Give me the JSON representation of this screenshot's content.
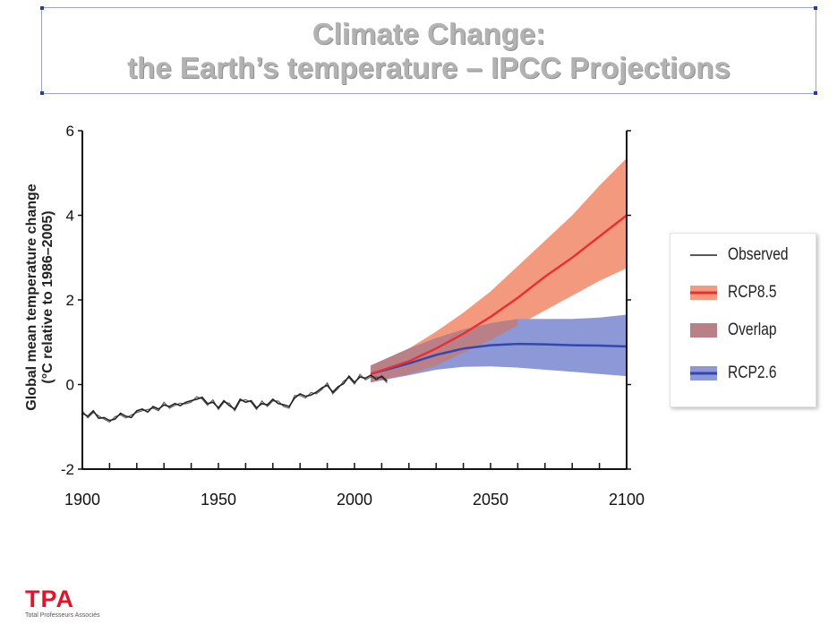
{
  "slide": {
    "title_line1": "Climate Change:",
    "title_line2": "the Earth’s temperature – IPCC Projections"
  },
  "logo": {
    "mark": "TPA",
    "subtitle": "Total Professeurs Associés"
  },
  "colors": {
    "observed": "#222222",
    "rcp85_line": "#e8302e",
    "rcp85_band": "#f39a7e",
    "rcp26_line": "#3446b0",
    "rcp26_band": "#8d98d6",
    "overlap": "#b98088"
  },
  "chart_data": {
    "type": "line",
    "title": "",
    "xlabel": "",
    "ylabel": "Global mean temperature change (°C relative to 1986–2005)",
    "ylabel_line1": "Global mean temperature change",
    "ylabel_line2": "(°C relative to 1986–2005)",
    "xlim": [
      1900,
      2100
    ],
    "ylim": [
      -2,
      6
    ],
    "xticks": [
      1900,
      1950,
      2000,
      2050,
      2100
    ],
    "yticks": [
      -2,
      0,
      2,
      4,
      6
    ],
    "grid": false,
    "legend_position": "right",
    "legend": [
      "Observed",
      "RCP8.5",
      "Overlap",
      "RCP2.6"
    ],
    "series": [
      {
        "name": "Observed",
        "x": [
          1900,
          1902,
          1904,
          1906,
          1908,
          1910,
          1912,
          1914,
          1916,
          1918,
          1920,
          1922,
          1924,
          1926,
          1928,
          1930,
          1932,
          1934,
          1936,
          1938,
          1940,
          1942,
          1944,
          1946,
          1948,
          1950,
          1952,
          1954,
          1956,
          1958,
          1960,
          1962,
          1964,
          1966,
          1968,
          1970,
          1972,
          1974,
          1976,
          1978,
          1980,
          1982,
          1984,
          1986,
          1988,
          1990,
          1992,
          1994,
          1996,
          1998,
          2000,
          2002,
          2004,
          2006,
          2008,
          2010,
          2012
        ],
        "values": [
          -0.68,
          -0.75,
          -0.62,
          -0.8,
          -0.78,
          -0.85,
          -0.82,
          -0.68,
          -0.75,
          -0.78,
          -0.62,
          -0.58,
          -0.65,
          -0.52,
          -0.58,
          -0.48,
          -0.52,
          -0.45,
          -0.5,
          -0.42,
          -0.38,
          -0.35,
          -0.3,
          -0.45,
          -0.42,
          -0.55,
          -0.38,
          -0.5,
          -0.58,
          -0.35,
          -0.42,
          -0.38,
          -0.55,
          -0.45,
          -0.48,
          -0.35,
          -0.45,
          -0.48,
          -0.52,
          -0.32,
          -0.22,
          -0.28,
          -0.25,
          -0.18,
          -0.08,
          -0.02,
          -0.18,
          -0.05,
          0.02,
          0.2,
          0.05,
          0.18,
          0.15,
          0.22,
          0.12,
          0.2,
          0.08
        ]
      },
      {
        "name": "RCP8.5",
        "x": [
          2006,
          2020,
          2030,
          2040,
          2050,
          2060,
          2070,
          2080,
          2090,
          2100
        ],
        "values": [
          0.25,
          0.55,
          0.85,
          1.2,
          1.6,
          2.05,
          2.55,
          3.0,
          3.5,
          4.0
        ],
        "lower": [
          0.05,
          0.25,
          0.45,
          0.75,
          1.05,
          1.4,
          1.75,
          2.1,
          2.45,
          2.75
        ],
        "upper": [
          0.45,
          0.85,
          1.25,
          1.7,
          2.2,
          2.8,
          3.4,
          4.0,
          4.7,
          5.35
        ]
      },
      {
        "name": "RCP2.6",
        "x": [
          2006,
          2020,
          2030,
          2040,
          2050,
          2060,
          2070,
          2080,
          2090,
          2100
        ],
        "values": [
          0.25,
          0.5,
          0.7,
          0.85,
          0.93,
          0.96,
          0.95,
          0.93,
          0.92,
          0.9
        ],
        "lower": [
          0.05,
          0.22,
          0.35,
          0.42,
          0.43,
          0.4,
          0.35,
          0.3,
          0.25,
          0.2
        ],
        "upper": [
          0.45,
          0.85,
          1.1,
          1.3,
          1.45,
          1.55,
          1.55,
          1.55,
          1.58,
          1.65
        ]
      }
    ]
  }
}
